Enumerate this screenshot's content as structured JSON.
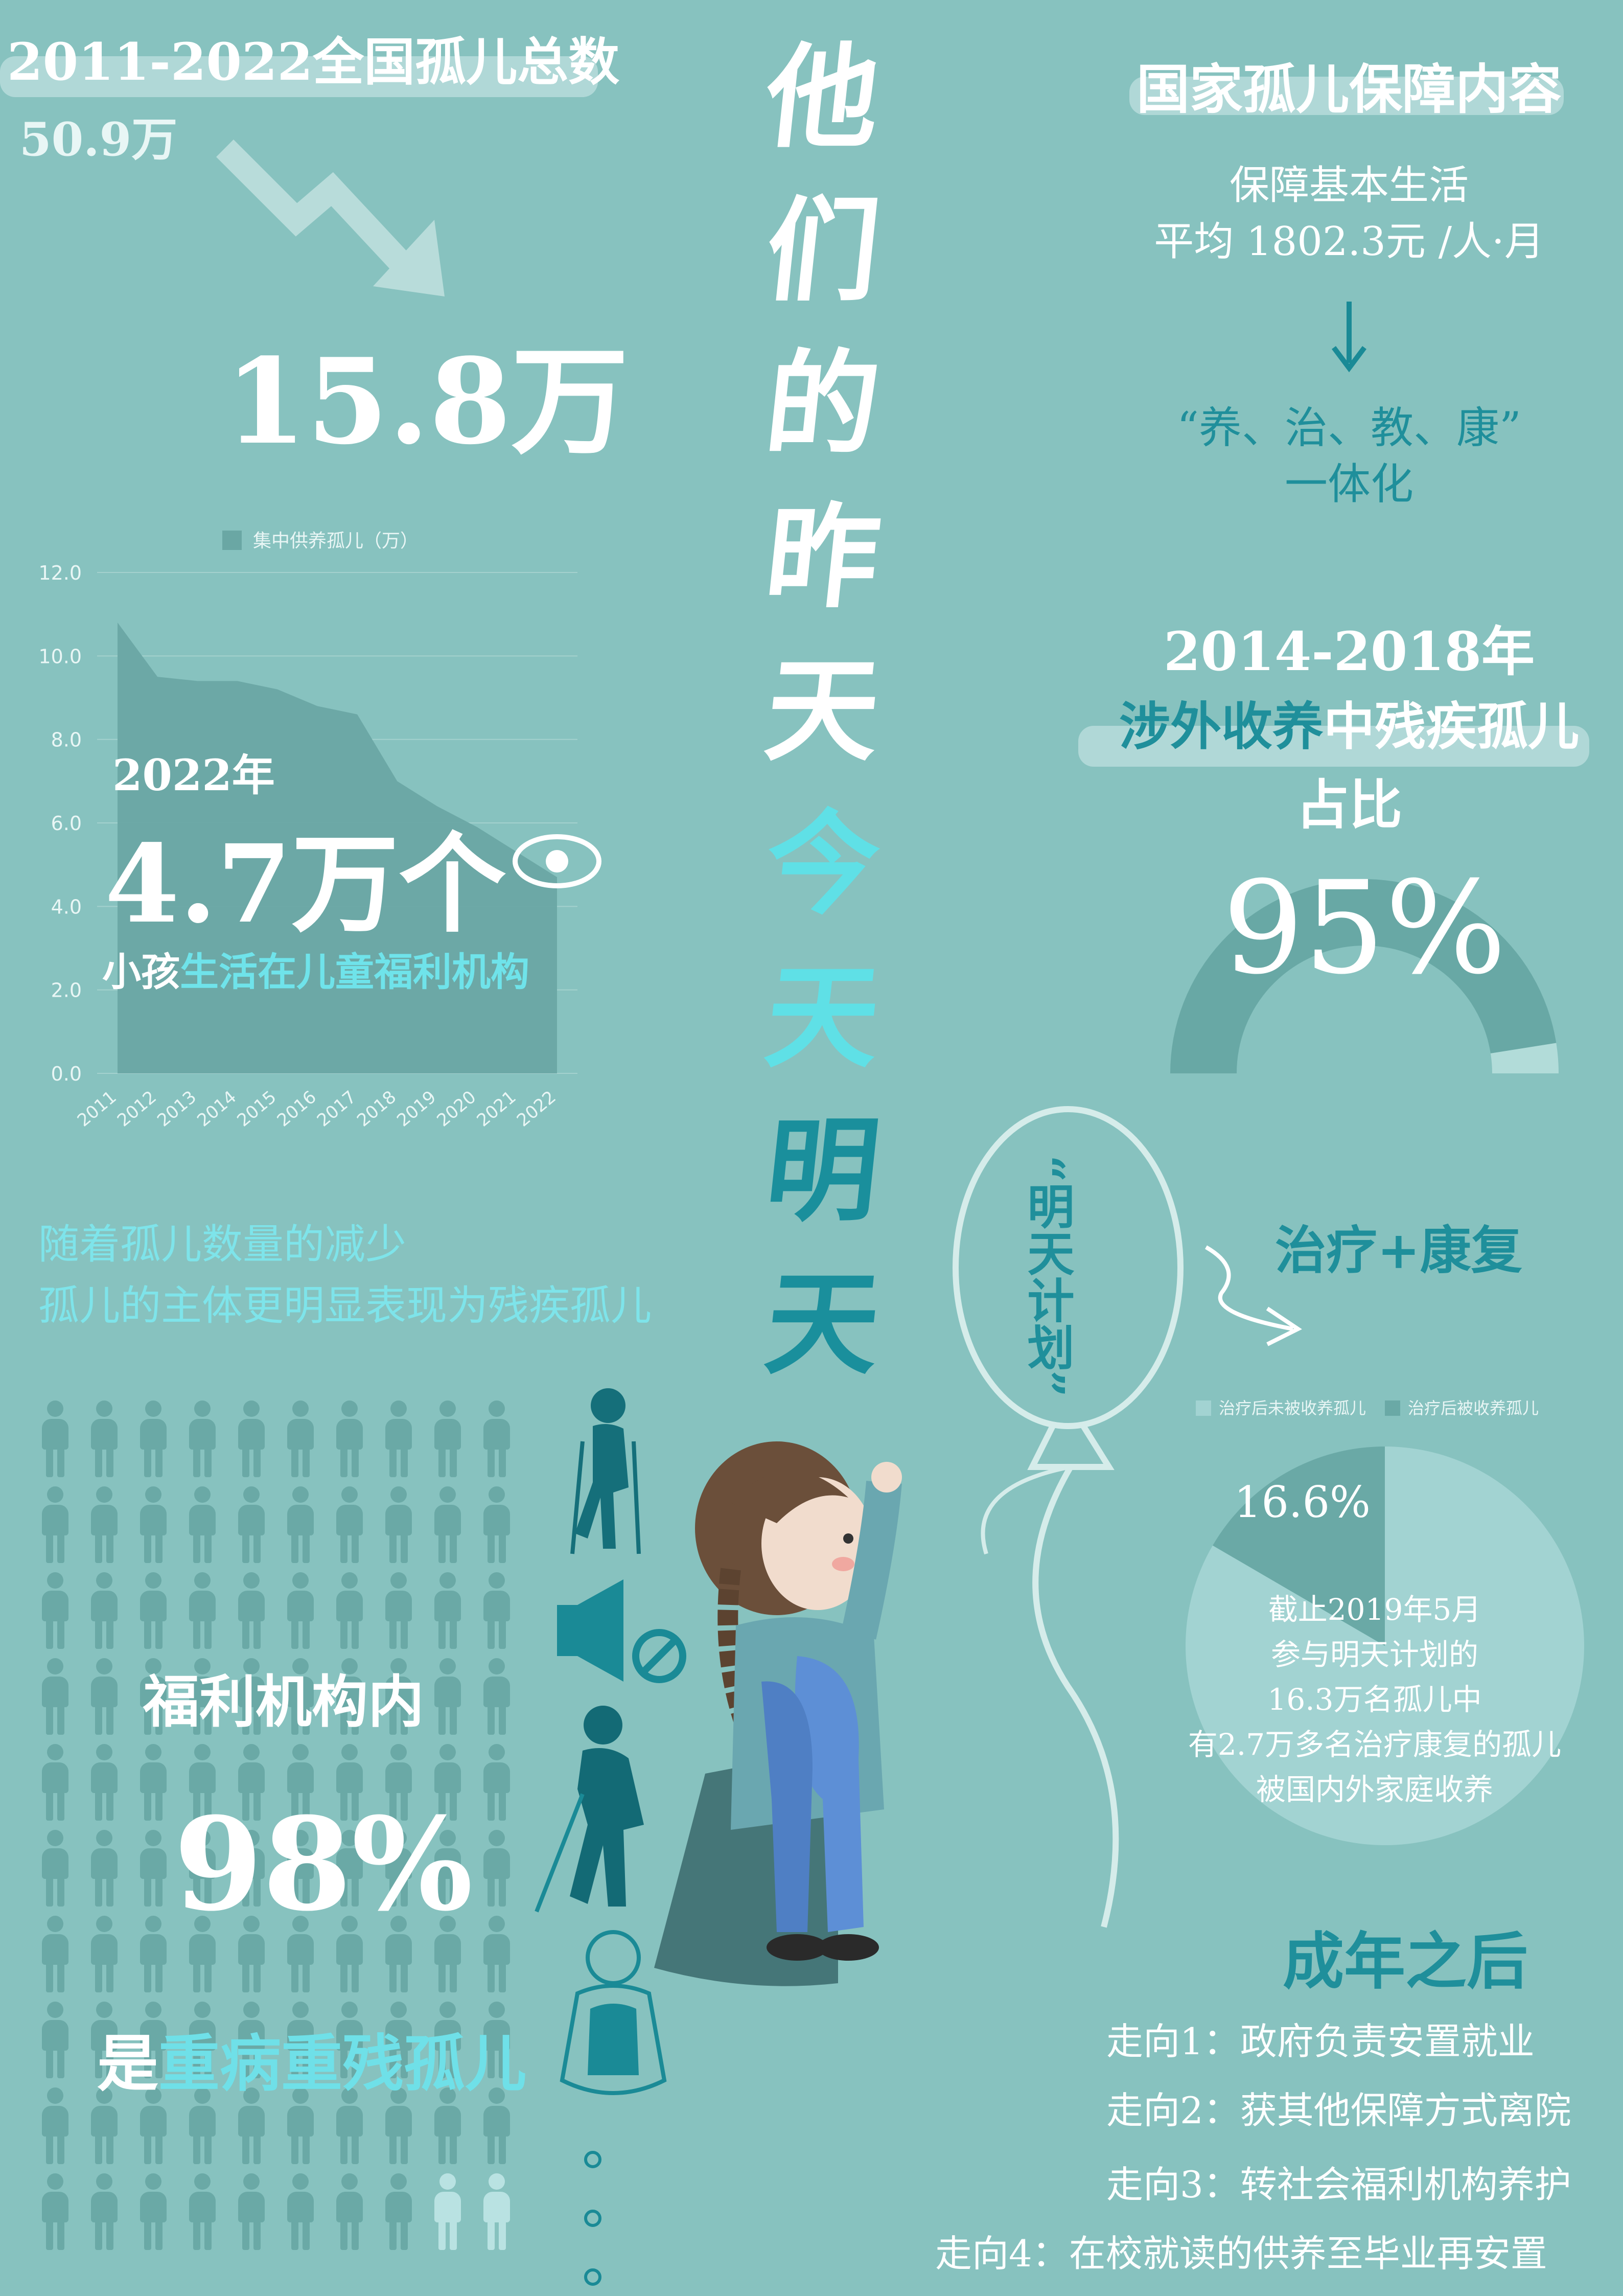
{
  "header_left": {
    "title": "2011-2022全国孤儿总数",
    "start_value": "50.9万",
    "end_value": "15.8万"
  },
  "main_title": [
    "他",
    "们",
    "的",
    "昨",
    "天",
    "今",
    "天",
    "明",
    "天"
  ],
  "main_title_colors": [
    "#ffffff",
    "#ffffff",
    "#ffffff",
    "#ffffff",
    "#ffffff",
    "#5fe0e6",
    "#5fe0e6",
    "#1a8f9c",
    "#1a8f9c"
  ],
  "chart_data": [
    {
      "type": "area",
      "title": "",
      "legend": [
        "集中供养孤儿（万）"
      ],
      "legend_position": "top",
      "x": [
        "2011",
        "2012",
        "2013",
        "2014",
        "2015",
        "2016",
        "2017",
        "2018",
        "2019",
        "2020",
        "2021",
        "2022"
      ],
      "series": [
        {
          "name": "集中供养孤儿（万）",
          "values": [
            10.8,
            9.5,
            9.4,
            9.4,
            9.2,
            8.8,
            8.6,
            7.0,
            6.4,
            5.9,
            5.3,
            4.7
          ]
        }
      ],
      "yticks": [
        "0.0",
        "2.0",
        "4.0",
        "6.0",
        "8.0",
        "10.0",
        "12.0"
      ],
      "ylim": [
        0,
        12
      ],
      "grid": true,
      "color": "#6aa7a4"
    },
    {
      "type": "pie",
      "title": "",
      "legend": [
        "治疗后未被收养孤儿",
        "治疗后被收养孤儿"
      ],
      "legend_position": "top",
      "slices": [
        {
          "label": "治疗后未被收养孤儿",
          "value": 83.4,
          "color": "#a2d3d2"
        },
        {
          "label": "治疗后被收养孤儿",
          "value": 16.6,
          "color": "#6aa9a6"
        }
      ],
      "data_label": "16.6%"
    },
    {
      "type": "pie",
      "title": "",
      "subtype": "half-donut gauge",
      "value_percent": 95,
      "colors": {
        "filled": "#68a8a5",
        "rest": "#b2dcd9"
      }
    }
  ],
  "chart_overlay": {
    "year": "2022年",
    "count": "4.7万个",
    "desc_white": "小孩",
    "desc_cyan": "生活在儿童福利机构"
  },
  "trend_text": {
    "line1": "随着孤儿数量的减少",
    "line2": "孤儿的主体更明显表现为残疾孤儿"
  },
  "welfare": {
    "line1": "福利机构内",
    "percent": "98%",
    "line3_prefix": "是",
    "line3_cyan": "重病重残孤儿"
  },
  "protection": {
    "title": "国家孤儿保障内容",
    "line1": "保障基本生活",
    "line2": "平均 1802.3元 /人·月",
    "line3": "“养、治、教、康”",
    "line4": "一体化"
  },
  "adoption": {
    "years": "2014-2018年",
    "subject_teal": "涉外收养",
    "subject_white": "中残疾孤儿",
    "label": "占比",
    "percent": "95%"
  },
  "plan": {
    "balloon_text": "“明天计划”",
    "treatment": "治疗+康复",
    "pie_text": [
      "截止2019年5月",
      "参与明天计划的",
      "16.3万名孤儿中",
      "有2.7万多名治疗康复的孤儿",
      "被国内外家庭收养"
    ]
  },
  "adult": {
    "title": "成年之后",
    "items": [
      "走向1：政府负责安置就业",
      "走向2：获其他保障方式离院",
      "走向3：转社会福利机构养护",
      "走向4：在校就读的供养至毕业再安置"
    ]
  },
  "icons": [
    "down-trend-arrow-icon",
    "eye-icon",
    "crutches-person-icon",
    "mute-speaker-icon",
    "blind-person-icon",
    "hugging-child-icon",
    "ellipsis-dots-icon",
    "down-arrow-icon",
    "curved-arrow-icon",
    "balloon-icon",
    "girl-illustration"
  ]
}
